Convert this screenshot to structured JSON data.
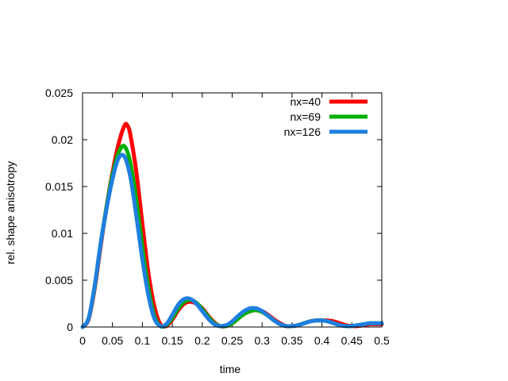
{
  "chart_data": {
    "type": "line",
    "xlabel": "time",
    "ylabel": "rel. shape anisotropy",
    "xlim": [
      0,
      0.5
    ],
    "ylim": [
      0,
      0.025
    ],
    "x_ticks": [
      "0",
      "0.05",
      "0.1",
      "0.15",
      "0.2",
      "0.25",
      "0.3",
      "0.35",
      "0.4",
      "0.45",
      "0.5"
    ],
    "y_ticks": [
      "0",
      "0.005",
      "0.01",
      "0.015",
      "0.02",
      "0.025"
    ],
    "grid": false,
    "legend_position": "top-right",
    "series": [
      {
        "name": "nx=40",
        "color": "#ff0000",
        "x": [
          0,
          0.01,
          0.02,
          0.03,
          0.04,
          0.05,
          0.06,
          0.07,
          0.075,
          0.08,
          0.09,
          0.1,
          0.11,
          0.12,
          0.13,
          0.14,
          0.15,
          0.16,
          0.17,
          0.18,
          0.19,
          0.2,
          0.21,
          0.22,
          0.23,
          0.24,
          0.25,
          0.26,
          0.27,
          0.28,
          0.29,
          0.3,
          0.31,
          0.32,
          0.33,
          0.34,
          0.35,
          0.36,
          0.37,
          0.38,
          0.39,
          0.4,
          0.41,
          0.42,
          0.43,
          0.44,
          0.45,
          0.46,
          0.47,
          0.48,
          0.49,
          0.5
        ],
        "y": [
          0,
          0.0008,
          0.004,
          0.0085,
          0.0128,
          0.0165,
          0.0195,
          0.0215,
          0.0215,
          0.0205,
          0.0165,
          0.011,
          0.0058,
          0.0022,
          0.0003,
          0.0001,
          0.0008,
          0.0018,
          0.0025,
          0.0027,
          0.0025,
          0.002,
          0.0012,
          0.0005,
          0.0001,
          0.0001,
          0.0004,
          0.0009,
          0.0014,
          0.0017,
          0.0018,
          0.0017,
          0.0013,
          0.0008,
          0.0004,
          0.0001,
          0.0001,
          0.0002,
          0.0004,
          0.0006,
          0.0007,
          0.0007,
          0.0007,
          0.0006,
          0.0004,
          0.0002,
          0.0001,
          0.0001,
          0.0002,
          0.0003,
          0.0003,
          0.0003
        ]
      },
      {
        "name": "nx=69",
        "color": "#00b000",
        "x": [
          0,
          0.01,
          0.02,
          0.03,
          0.04,
          0.05,
          0.06,
          0.07,
          0.08,
          0.09,
          0.1,
          0.11,
          0.12,
          0.13,
          0.14,
          0.15,
          0.16,
          0.17,
          0.18,
          0.19,
          0.2,
          0.21,
          0.22,
          0.23,
          0.24,
          0.25,
          0.26,
          0.27,
          0.28,
          0.29,
          0.3,
          0.31,
          0.32,
          0.33,
          0.34,
          0.35,
          0.36,
          0.37,
          0.38,
          0.39,
          0.4,
          0.41,
          0.42,
          0.43,
          0.44,
          0.45,
          0.46,
          0.47,
          0.48,
          0.49,
          0.5
        ],
        "y": [
          0,
          0.0009,
          0.0042,
          0.0088,
          0.0128,
          0.0162,
          0.0186,
          0.0193,
          0.0175,
          0.0135,
          0.0085,
          0.0042,
          0.0012,
          0.0001,
          0.0002,
          0.001,
          0.002,
          0.0027,
          0.0029,
          0.0026,
          0.0019,
          0.0011,
          0.0004,
          0.0001,
          0.0001,
          0.0004,
          0.0009,
          0.0014,
          0.0017,
          0.0018,
          0.0016,
          0.0012,
          0.0007,
          0.0003,
          0.0001,
          0.0001,
          0.0002,
          0.0004,
          0.0006,
          0.0007,
          0.0007,
          0.0006,
          0.0004,
          0.0002,
          0.0001,
          0.0001,
          0.0002,
          0.0003,
          0.0004,
          0.0004,
          0.0004
        ]
      },
      {
        "name": "nx=126",
        "color": "#1e7fe0",
        "x": [
          0,
          0.01,
          0.02,
          0.03,
          0.04,
          0.05,
          0.06,
          0.07,
          0.08,
          0.09,
          0.1,
          0.11,
          0.12,
          0.13,
          0.14,
          0.15,
          0.16,
          0.17,
          0.18,
          0.19,
          0.2,
          0.21,
          0.22,
          0.23,
          0.24,
          0.25,
          0.26,
          0.27,
          0.28,
          0.29,
          0.3,
          0.31,
          0.32,
          0.33,
          0.34,
          0.35,
          0.36,
          0.37,
          0.38,
          0.39,
          0.4,
          0.41,
          0.42,
          0.43,
          0.44,
          0.45,
          0.46,
          0.47,
          0.48,
          0.49,
          0.5
        ],
        "y": [
          0,
          0.0009,
          0.0043,
          0.0088,
          0.0126,
          0.0158,
          0.018,
          0.0182,
          0.016,
          0.0118,
          0.0072,
          0.0034,
          0.0009,
          0.0001,
          0.0003,
          0.0013,
          0.0024,
          0.003,
          0.003,
          0.0025,
          0.0017,
          0.0009,
          0.0003,
          0.0001,
          0.0002,
          0.0006,
          0.0012,
          0.0017,
          0.002,
          0.002,
          0.0017,
          0.0012,
          0.0007,
          0.0003,
          0.0001,
          0.0001,
          0.0002,
          0.0004,
          0.0006,
          0.0007,
          0.0007,
          0.0006,
          0.0004,
          0.0002,
          0.0001,
          0.0001,
          0.0002,
          0.0003,
          0.0004,
          0.0004,
          0.0004
        ]
      }
    ]
  }
}
